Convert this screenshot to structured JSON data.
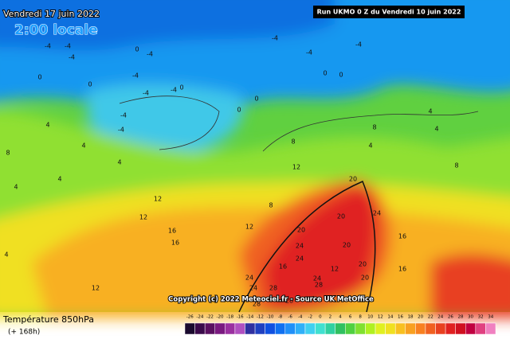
{
  "header": {
    "title": "Vendredi 17 juin 2022",
    "subtitle": "2:00 locale",
    "run": "Run UKMO 0 Z du Vendredi 10 juin 2022"
  },
  "copyright": "Copyright (c) 2022 Meteociel.fr - Source UK MetOffice",
  "legend": {
    "title": "Température 850hPa",
    "lead": "(+ 168h)"
  },
  "scale": {
    "values": [
      -26,
      -24,
      -22,
      -20,
      -18,
      -16,
      -14,
      -12,
      -10,
      -8,
      -6,
      -4,
      -2,
      0,
      2,
      4,
      6,
      8,
      10,
      12,
      14,
      16,
      18,
      20,
      22,
      24,
      26,
      28,
      30,
      32,
      34
    ],
    "colors": [
      "#1a0a2e",
      "#3a0a4a",
      "#5a1060",
      "#7a1a80",
      "#9a30a0",
      "#b050c0",
      "#3030a0",
      "#2040c0",
      "#1050e0",
      "#1070f0",
      "#2090f8",
      "#30b0f8",
      "#40d0f0",
      "#40e0d0",
      "#30d0a0",
      "#30c060",
      "#50d040",
      "#80e030",
      "#b0f020",
      "#e0f020",
      "#f0e020",
      "#f8c020",
      "#f8a020",
      "#f88020",
      "#f06020",
      "#e84020",
      "#e02020",
      "#d01020",
      "#c00040",
      "#e04080",
      "#f080c0"
    ]
  },
  "isotherm_labels": [
    -4,
    -4,
    -4,
    -4,
    -4,
    -4,
    -4,
    -4,
    -4,
    -4,
    -4,
    -4,
    0,
    0,
    0,
    0,
    0,
    0,
    0,
    0,
    4,
    4,
    4,
    4,
    4,
    4,
    4,
    4,
    4,
    8,
    8,
    8,
    8,
    8,
    12,
    12,
    12,
    12,
    12,
    12,
    16,
    16,
    16,
    16,
    16,
    20,
    20,
    20,
    20,
    20,
    20,
    24,
    24,
    24,
    24,
    24,
    24,
    28,
    28,
    28,
    28
  ]
}
